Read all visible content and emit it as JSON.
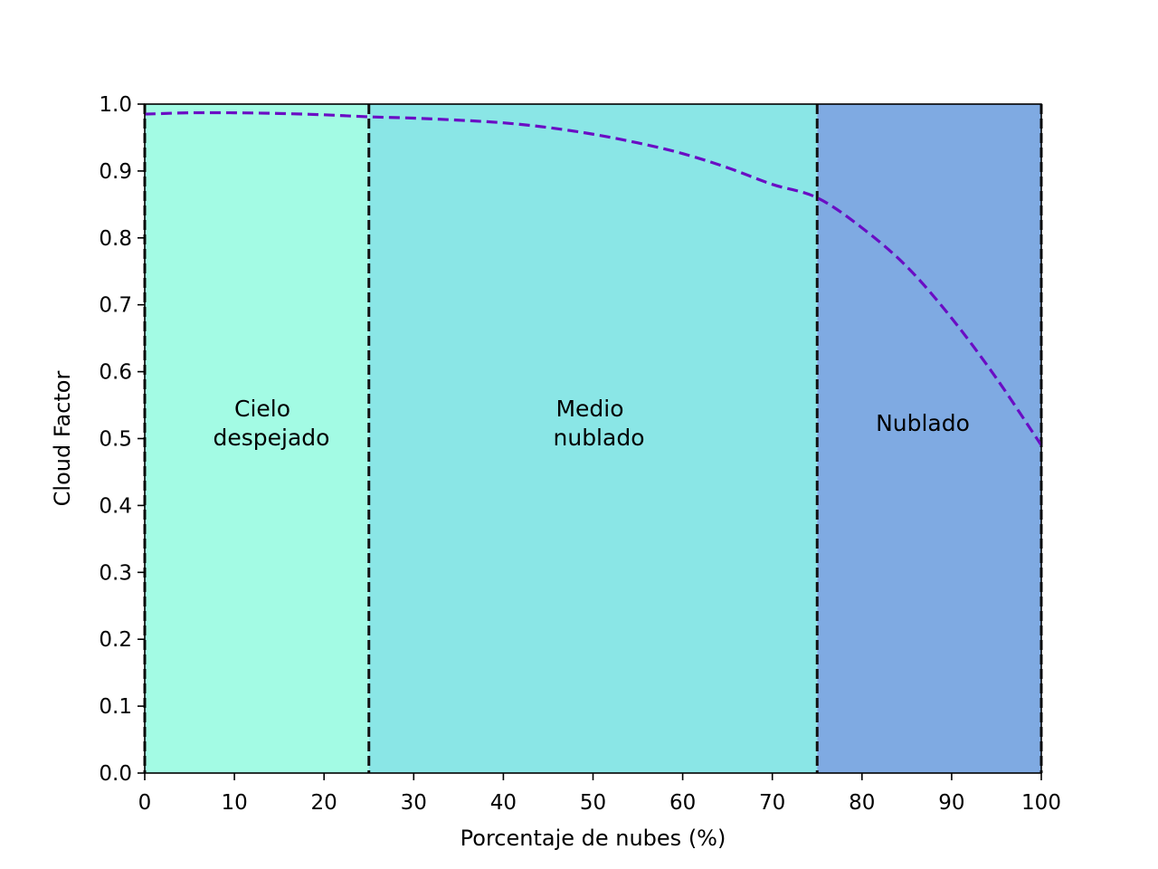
{
  "chart_data": {
    "type": "line",
    "title": "",
    "xlabel": "Porcentaje de nubes (%)",
    "ylabel": "Cloud Factor",
    "xlim": [
      0,
      100
    ],
    "ylim": [
      0.0,
      1.0
    ],
    "grid": false,
    "xticks": [
      "0",
      "10",
      "20",
      "30",
      "40",
      "50",
      "60",
      "70",
      "80",
      "90",
      "100"
    ],
    "yticks": [
      "0.0",
      "0.1",
      "0.2",
      "0.3",
      "0.4",
      "0.5",
      "0.6",
      "0.7",
      "0.8",
      "0.9",
      "1.0"
    ],
    "regions": [
      {
        "label_lines": [
          "Cielo",
          "despejado"
        ],
        "x_start": 0,
        "x_end": 25,
        "color": "#a3fbe4"
      },
      {
        "label_lines": [
          "Medio",
          "nublado"
        ],
        "x_start": 25,
        "x_end": 75,
        "color": "#8ae6e6"
      },
      {
        "label_lines": [
          "Nublado"
        ],
        "x_start": 75,
        "x_end": 100,
        "color": "#7faae2"
      }
    ],
    "boundaries": [
      0,
      25,
      75,
      100
    ],
    "series": [
      {
        "color": "#6a0dc4",
        "line_style": "dashed",
        "x": [
          0,
          5,
          10,
          15,
          20,
          25,
          30,
          35,
          40,
          45,
          50,
          55,
          60,
          65,
          70,
          75,
          80,
          85,
          90,
          95,
          100
        ],
        "y": [
          0.985,
          0.987,
          0.987,
          0.986,
          0.984,
          0.981,
          0.979,
          0.976,
          0.972,
          0.965,
          0.955,
          0.942,
          0.926,
          0.905,
          0.88,
          0.86,
          0.815,
          0.757,
          0.68,
          0.59,
          0.49
        ]
      }
    ]
  }
}
